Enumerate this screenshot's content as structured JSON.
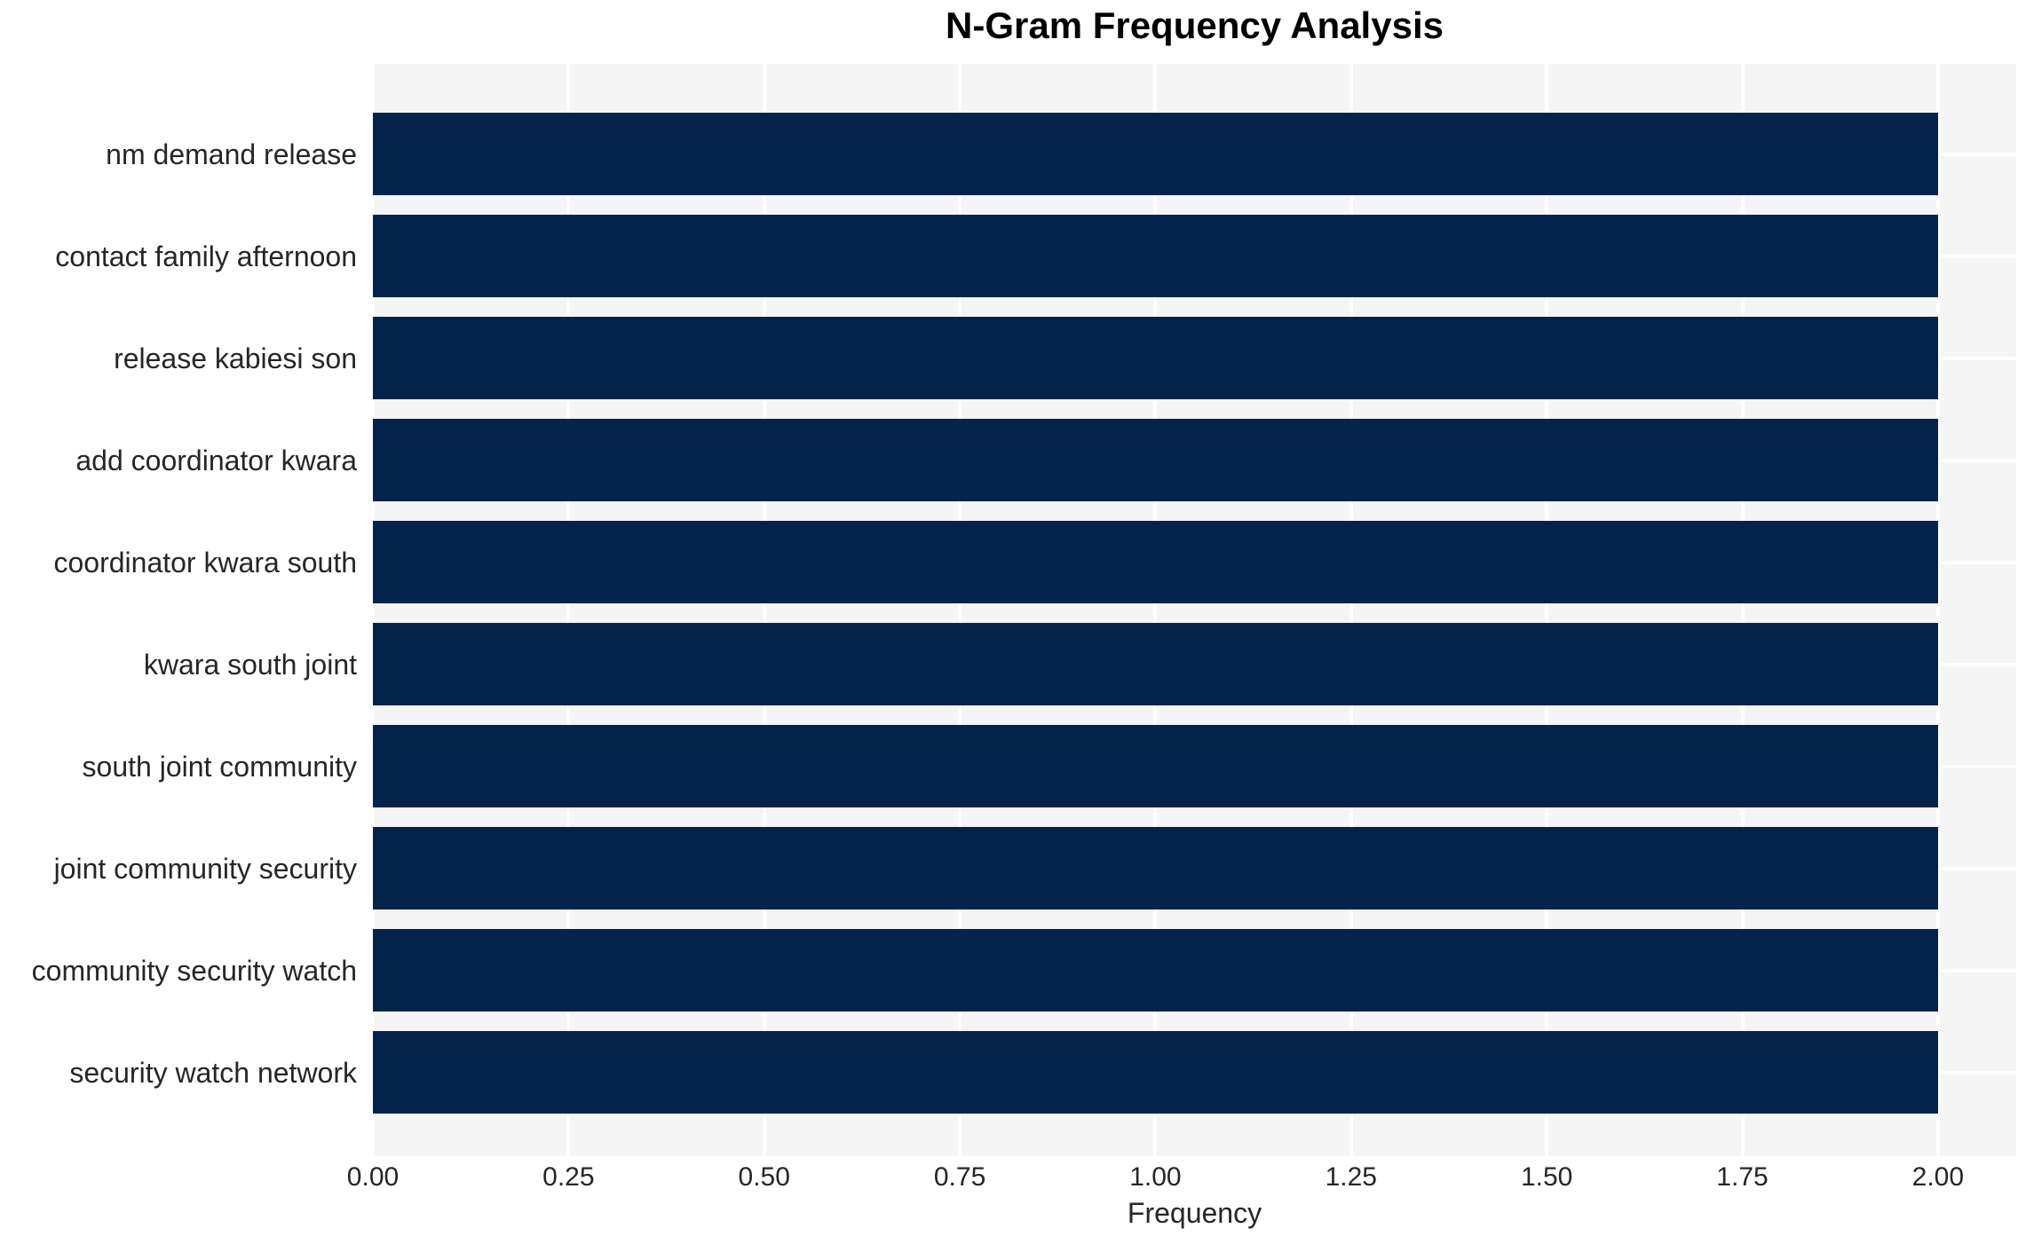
{
  "chart_data": {
    "type": "bar",
    "orientation": "horizontal",
    "title": "N-Gram Frequency Analysis",
    "xlabel": "Frequency",
    "ylabel": "",
    "categories": [
      "nm demand release",
      "contact family afternoon",
      "release kabiesi son",
      "add coordinator kwara",
      "coordinator kwara south",
      "kwara south joint",
      "south joint community",
      "joint community security",
      "community security watch",
      "security watch network"
    ],
    "values": [
      2,
      2,
      2,
      2,
      2,
      2,
      2,
      2,
      2,
      2
    ],
    "xticks": [
      "0.00",
      "0.25",
      "0.50",
      "0.75",
      "1.00",
      "1.25",
      "1.50",
      "1.75",
      "2.00"
    ],
    "xtick_values": [
      0,
      0.25,
      0.5,
      0.75,
      1.0,
      1.25,
      1.5,
      1.75,
      2.0
    ],
    "xlim": [
      0,
      2.1
    ],
    "grid": true,
    "legend": false,
    "colors": {
      "bar": "#03234b",
      "plot_bg": "#f5f5f6",
      "gridline": "#ffffff",
      "tick_text": "#262626",
      "title_text": "#000000"
    }
  }
}
